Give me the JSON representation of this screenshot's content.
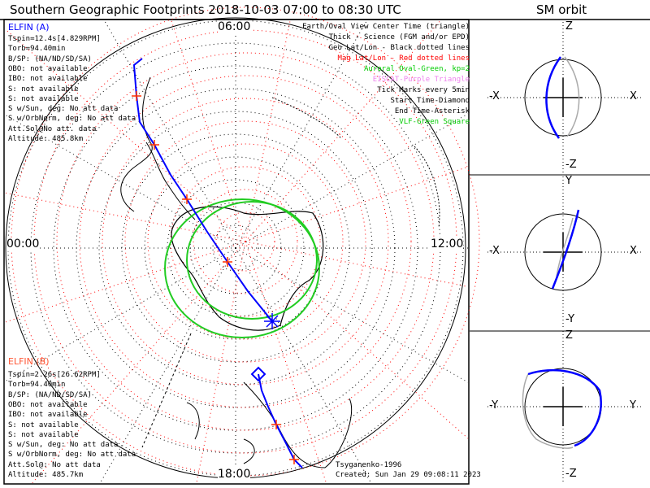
{
  "title": "Southern Geographic Footprints 2018-10-03 07:00 to 08:30 UTC",
  "sm_title": "SM orbit",
  "mlt_labels": {
    "top": "06:00",
    "left": "00:00",
    "right": "12:00",
    "bottom": "18:00"
  },
  "legend": [
    {
      "text": "Earth/Oval View Center Time (triangle)",
      "color": "#000000"
    },
    {
      "text": "Thick - Science (FGM and/or EPD)",
      "color": "#000000"
    },
    {
      "text": "Geo Lat/Lon - Black dotted lines",
      "color": "#000000"
    },
    {
      "text": "Mag Lat/Lon - Red dotted lines",
      "color": "#ff0000"
    },
    {
      "text": "Auroral Oval-Green, kp=2",
      "color": "#00cc00"
    },
    {
      "text": "EISCAT-Purple Triangle",
      "color": "#ee82ee"
    },
    {
      "text": "Tick Marks every 5min",
      "color": "#000000"
    },
    {
      "text": "Start Time-Diamond",
      "color": "#000000"
    },
    {
      "text": "End Time-Asterisk",
      "color": "#000000"
    },
    {
      "text": "VLF-Green Square",
      "color": "#00cc00"
    }
  ],
  "elfin_a": {
    "name": "ELFIN (A)",
    "color": "#0000ff",
    "lines": [
      "Tspin=12.4s[4.829RPM]",
      "Torb=94.40min",
      "B/SP: (NA/ND/SD/SA)",
      "OBO: not available",
      "IBO: not available",
      "S: not available",
      "S: not available",
      "S w/Sun, deg: No att data",
      "S w/OrbNorm, deg: No att data",
      "Att.Sol@No att. data",
      "Altitude: 485.8km"
    ]
  },
  "elfin_b": {
    "name": "ELFIN (B)",
    "color": "#ff5533",
    "lines": [
      "Tspin=2.26s[26.62RPM]",
      "Torb=94.40min",
      "B/SP: (NA/ND/SD/SA)",
      "OBO: not available",
      "IBO: not available",
      "S: not available",
      "S: not available",
      "S w/Sun, deg: No att data",
      "S w/OrbNorm, deg: No att data",
      "Att.Sol@: No att data",
      "Altitude: 485.7km"
    ]
  },
  "footer": {
    "model": "Tsyganenko-1996",
    "created": "Created: Sun Jan 29 09:08:11 2023"
  },
  "sm_panels": [
    {
      "top": "Z",
      "bottom": "-Z",
      "left": "-X",
      "right": "X"
    },
    {
      "top": "Y",
      "bottom": "-Y",
      "left": "-X",
      "right": "X"
    },
    {
      "top": "Z",
      "bottom": "-Z",
      "left": "-Y",
      "right": "Y"
    }
  ],
  "colors": {
    "track": "#0000ff",
    "tick": "#ff3300",
    "oval": "#22cc22",
    "mag_grid": "#ff0000",
    "geo_grid": "#000000"
  }
}
